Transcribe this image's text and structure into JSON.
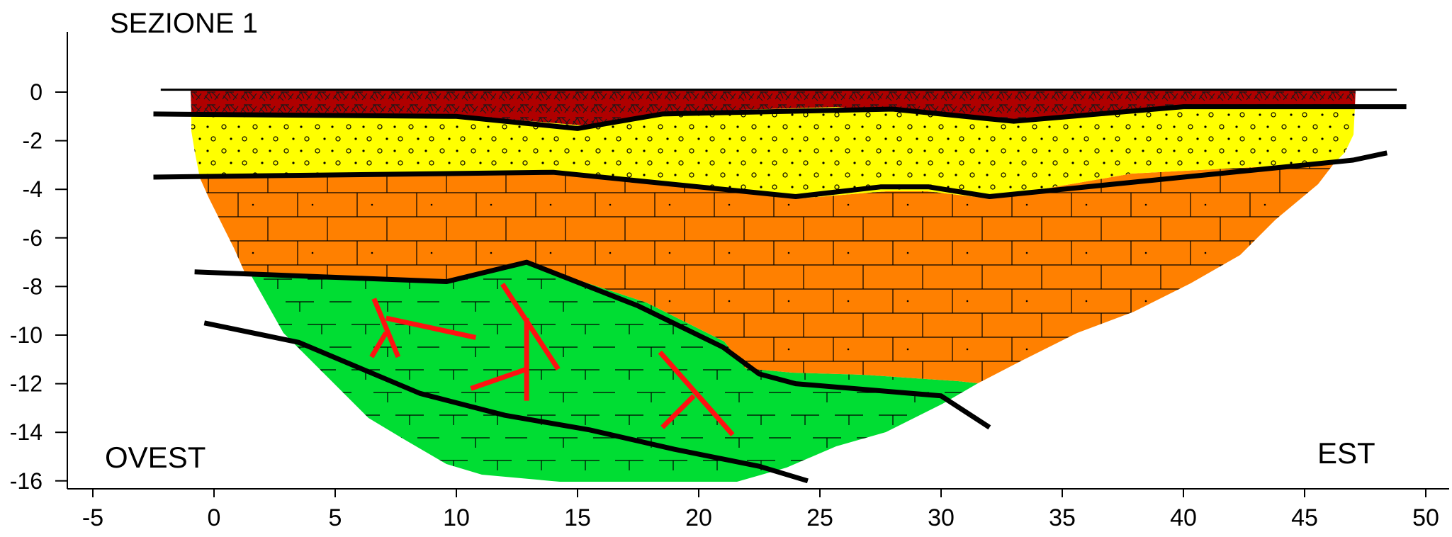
{
  "title": "SEZIONE 1",
  "left_label": "OVEST",
  "right_label": "EST",
  "colors": {
    "topsoil": "#b00000",
    "sand": "#ffff00",
    "limestone": "#ff8000",
    "green_unit": "#00dd33",
    "faults": "#ff1111",
    "contacts": "#000000"
  },
  "chart_data": {
    "type": "cross-section",
    "title": "SEZIONE 1",
    "xlabel": "",
    "ylabel": "",
    "xlim": [
      -5,
      50
    ],
    "ylim": [
      -16,
      0
    ],
    "x_ticks": [
      "-5",
      "0",
      "5",
      "10",
      "15",
      "20",
      "25",
      "30",
      "35",
      "40",
      "45",
      "50"
    ],
    "y_ticks": [
      "0",
      "-2",
      "-4",
      "-6",
      "-8",
      "-10",
      "-12",
      "-14",
      "-16"
    ],
    "units": [
      {
        "name": "topsoil",
        "color": "#b00000",
        "pattern": "breccia"
      },
      {
        "name": "sand",
        "color": "#ffff00",
        "pattern": "dots-circles"
      },
      {
        "name": "limestone",
        "color": "#ff8000",
        "pattern": "bricks"
      },
      {
        "name": "green_unit",
        "color": "#00dd33",
        "pattern": "limestone-symbols"
      }
    ],
    "boundaries": [
      {
        "name": "ground_surface",
        "points": [
          [
            -2.2,
            0.1
          ],
          [
            48.8,
            0.1
          ]
        ]
      },
      {
        "name": "base_topsoil",
        "points": [
          [
            -2.5,
            -0.9
          ],
          [
            10,
            -1.0
          ],
          [
            15,
            -1.5
          ],
          [
            18.5,
            -0.9
          ],
          [
            28,
            -0.7
          ],
          [
            33,
            -1.2
          ],
          [
            40,
            -0.6
          ],
          [
            49.2,
            -0.6
          ]
        ]
      },
      {
        "name": "base_sand",
        "points": [
          [
            -2.5,
            -3.5
          ],
          [
            14,
            -3.3
          ],
          [
            24,
            -4.3
          ],
          [
            27.5,
            -3.9
          ],
          [
            29.5,
            -3.9
          ],
          [
            32,
            -4.3
          ],
          [
            47,
            -2.8
          ],
          [
            48.4,
            -2.5
          ]
        ]
      },
      {
        "name": "top_green_unit",
        "points": [
          [
            -0.8,
            -7.4
          ],
          [
            9.6,
            -7.8
          ],
          [
            12.9,
            -7.0
          ],
          [
            17.5,
            -8.8
          ],
          [
            21,
            -10.5
          ],
          [
            22.5,
            -11.6
          ],
          [
            24,
            -12.0
          ],
          [
            30,
            -12.5
          ],
          [
            32,
            -13.8
          ]
        ]
      },
      {
        "name": "lower_contact",
        "points": [
          [
            -0.4,
            -9.5
          ],
          [
            3.5,
            -10.3
          ],
          [
            8.5,
            -12.4
          ],
          [
            12,
            -13.3
          ],
          [
            15.5,
            -13.9
          ],
          [
            19,
            -14.7
          ],
          [
            22.5,
            -15.4
          ],
          [
            24.5,
            -16.0
          ]
        ]
      }
    ],
    "faults": [
      [
        [
          6.6,
          -8.5
        ],
        [
          7.6,
          -10.9
        ]
      ],
      [
        [
          7.1,
          -9.3
        ],
        [
          10.8,
          -10.1
        ]
      ],
      [
        [
          7.1,
          -9.9
        ],
        [
          6.5,
          -10.9
        ]
      ],
      [
        [
          11.9,
          -7.9
        ],
        [
          14.2,
          -11.4
        ]
      ],
      [
        [
          12.9,
          -9.3
        ],
        [
          12.9,
          -12.7
        ]
      ],
      [
        [
          12.9,
          -11.4
        ],
        [
          10.6,
          -12.2
        ]
      ],
      [
        [
          18.4,
          -10.7
        ],
        [
          21.4,
          -14.1
        ]
      ],
      [
        [
          19.8,
          -12.5
        ],
        [
          18.5,
          -13.8
        ]
      ]
    ]
  }
}
